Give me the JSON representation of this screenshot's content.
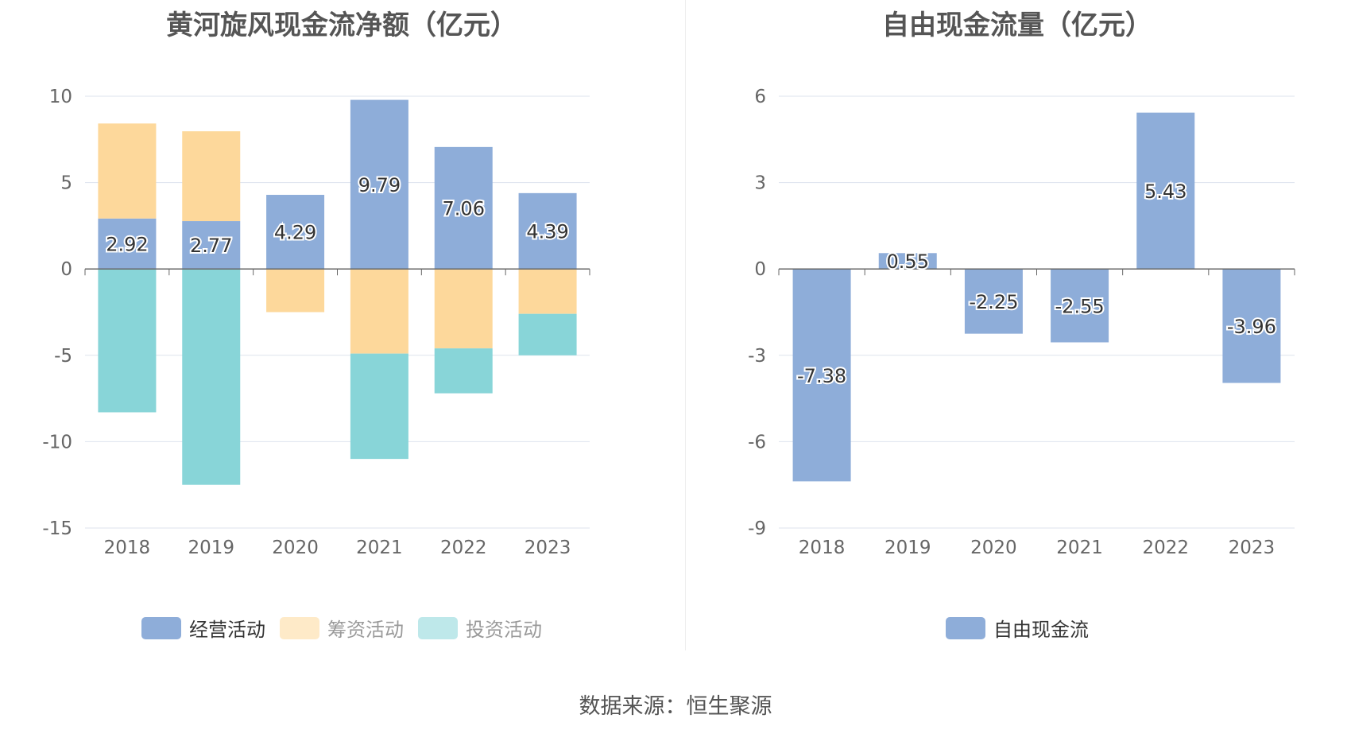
{
  "source": "数据来源：恒生聚源",
  "colors": {
    "operating": "#8eadd9",
    "financing": "#fdd89b",
    "investing": "#88d5d8",
    "axis": "#666666",
    "grid": "#dde3ee"
  },
  "chart_data": [
    {
      "type": "bar",
      "stacked": true,
      "title": "黄河旋风现金流净额（亿元）",
      "categories": [
        "2018",
        "2019",
        "2020",
        "2021",
        "2022",
        "2023"
      ],
      "ylim": [
        -15,
        10
      ],
      "yticks": [
        10,
        5,
        0,
        -5,
        -10,
        -15
      ],
      "grid": true,
      "legend_position": "bottom",
      "series": [
        {
          "name": "经营活动",
          "color": "#8eadd9",
          "values": [
            2.92,
            2.77,
            4.29,
            9.79,
            7.06,
            4.39
          ],
          "show_labels": true
        },
        {
          "name": "筹资活动",
          "color": "#fdd89b",
          "values": [
            5.5,
            5.2,
            -2.5,
            -4.9,
            -4.6,
            -2.6
          ],
          "show_labels": false
        },
        {
          "name": "投资活动",
          "color": "#88d5d8",
          "values": [
            -8.3,
            -12.5,
            0,
            -6.1,
            -2.6,
            -2.4
          ],
          "show_labels": false
        }
      ]
    },
    {
      "type": "bar",
      "title": "自由现金流量（亿元）",
      "categories": [
        "2018",
        "2019",
        "2020",
        "2021",
        "2022",
        "2023"
      ],
      "ylim": [
        -9,
        6
      ],
      "yticks": [
        6,
        3,
        0,
        -3,
        -6,
        -9
      ],
      "grid": true,
      "legend_position": "bottom",
      "series": [
        {
          "name": "自由现金流",
          "color": "#8eadd9",
          "values": [
            -7.38,
            0.55,
            -2.25,
            -2.55,
            5.43,
            -3.96
          ],
          "show_labels": true
        }
      ]
    }
  ]
}
